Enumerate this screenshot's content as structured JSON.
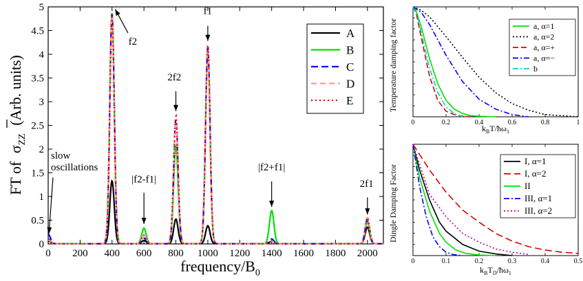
{
  "chart_data": [
    {
      "id": "main",
      "type": "line",
      "ylabel_prefix": "FT of",
      "ylabel_sigma": "σ",
      "ylabel_sub": "ZZ",
      "ylabel_suffix": "(Arb. units)",
      "xlabel_main": "frequency/B",
      "xlabel_sub": "0",
      "xlim": [
        0,
        2100
      ],
      "ylim": [
        0,
        5
      ],
      "xticks": [
        "0",
        "200",
        "400",
        "600",
        "800",
        "1000",
        "1200",
        "1400",
        "1600",
        "1800",
        "2000"
      ],
      "xtick_values": [
        0,
        200,
        400,
        600,
        800,
        1000,
        1200,
        1400,
        1600,
        1800,
        2000
      ],
      "yticks": [
        "0",
        "0.5",
        "1",
        "1.5",
        "2",
        "2.5",
        "3",
        "3.5",
        "4",
        "4.5",
        "5"
      ],
      "ytick_values": [
        0,
        0.5,
        1,
        1.5,
        2,
        2.5,
        3,
        3.5,
        4,
        4.5,
        5
      ],
      "series": [
        {
          "name": "A",
          "color": "#000000",
          "dash": "",
          "peaks": [
            [
              0,
              0.06
            ],
            [
              400,
              1.33
            ],
            [
              600,
              0.07
            ],
            [
              800,
              0.52
            ],
            [
              1000,
              0.38
            ],
            [
              1400,
              0.05
            ],
            [
              2000,
              0.35
            ]
          ]
        },
        {
          "name": "B",
          "color": "#00e000",
          "dash": "",
          "peaks": [
            [
              0,
              0.1
            ],
            [
              400,
              4.88
            ],
            [
              600,
              0.33
            ],
            [
              800,
              2.08
            ],
            [
              1000,
              4.12
            ],
            [
              1400,
              0.7
            ],
            [
              2000,
              0.46
            ]
          ]
        },
        {
          "name": "C",
          "color": "#0000ff",
          "dash": "10,5",
          "peaks": [
            [
              0,
              0.2
            ],
            [
              400,
              4.85
            ],
            [
              600,
              0.12
            ],
            [
              800,
              2.62
            ],
            [
              1000,
              4.15
            ],
            [
              1400,
              0.1
            ],
            [
              2000,
              0.52
            ]
          ]
        },
        {
          "name": "D",
          "color": "#ff9999",
          "dash": "8,5",
          "peaks": [
            [
              0,
              0.08
            ],
            [
              400,
              4.82
            ],
            [
              600,
              0.2
            ],
            [
              800,
              2.58
            ],
            [
              1000,
              4.1
            ],
            [
              1400,
              0.05
            ],
            [
              2000,
              0.55
            ]
          ]
        },
        {
          "name": "E",
          "color": "#ff0000",
          "dash": "2,4",
          "peaks": [
            [
              0,
              0.1
            ],
            [
              400,
              4.8
            ],
            [
              600,
              0.18
            ],
            [
              800,
              2.7
            ],
            [
              1000,
              4.2
            ],
            [
              1400,
              0.05
            ],
            [
              2000,
              0.55
            ]
          ]
        }
      ],
      "annotations": [
        {
          "text": "slow",
          "x": 30,
          "y": 1.8
        },
        {
          "text": "oscillations",
          "x": 30,
          "y": 1.55
        },
        {
          "text": "f2",
          "x": 530,
          "y": 4.2
        },
        {
          "text": "f1",
          "x": 1000,
          "y": 4.85
        },
        {
          "text": "2f2",
          "x": 790,
          "y": 3.45
        },
        {
          "text": "|f2-f1|",
          "x": 600,
          "y": 1.3
        },
        {
          "text": "|f2+f1|",
          "x": 1400,
          "y": 1.55
        },
        {
          "text": "2f1",
          "x": 1995,
          "y": 1.2
        }
      ]
    },
    {
      "id": "temp",
      "type": "line",
      "ylabel": "Temperature damping factor",
      "xlabel_k": "k",
      "xlabel_b": "B",
      "xlabel_t": "T/ħω",
      "xlabel_sub": "1",
      "xlim": [
        0,
        1
      ],
      "ylim": [
        0,
        1
      ],
      "xticks": [
        "0",
        "0.2",
        "0.4",
        "0.6",
        "0.8",
        "1"
      ],
      "xtick_values": [
        0,
        0.2,
        0.4,
        0.6,
        0.8,
        1
      ],
      "series": [
        {
          "name": "a, α=1",
          "color": "#00e000",
          "dash": "",
          "x": [
            0,
            0.02,
            0.05,
            0.1,
            0.15,
            0.2,
            0.25,
            0.3,
            0.35,
            0.4,
            0.5
          ],
          "y": [
            1,
            0.96,
            0.82,
            0.53,
            0.3,
            0.15,
            0.07,
            0.03,
            0.01,
            0.005,
            0
          ]
        },
        {
          "name": "a, α=2",
          "color": "#000000",
          "dash": "2,3",
          "x": [
            0,
            0.05,
            0.1,
            0.2,
            0.3,
            0.4,
            0.5,
            0.6,
            0.7,
            0.8,
            0.9,
            1
          ],
          "y": [
            1,
            0.97,
            0.91,
            0.73,
            0.54,
            0.36,
            0.22,
            0.12,
            0.06,
            0.02,
            0.01,
            0
          ]
        },
        {
          "name": "a, α=+",
          "color": "#dd0000",
          "dash": "8,4",
          "x": [
            0,
            0.02,
            0.05,
            0.1,
            0.15,
            0.2,
            0.25,
            0.3,
            0.35
          ],
          "y": [
            1,
            0.94,
            0.72,
            0.37,
            0.15,
            0.05,
            0.02,
            0.005,
            0
          ]
        },
        {
          "name": "a, α=−",
          "color": "#0000ff",
          "dash": "8,3,2,3",
          "x": [
            0,
            0.05,
            0.1,
            0.2,
            0.3,
            0.4,
            0.5,
            0.6,
            0.7
          ],
          "y": [
            1,
            0.95,
            0.84,
            0.56,
            0.32,
            0.16,
            0.07,
            0.02,
            0
          ]
        },
        {
          "name": "b",
          "color": "#00cccc",
          "dash": "8,3,2,3",
          "x": [
            0,
            0.03,
            0.06,
            0.1,
            0.15,
            0.2,
            0.25,
            0.3
          ],
          "y": [
            1,
            0.9,
            0.7,
            0.44,
            0.22,
            0.09,
            0.03,
            0
          ]
        }
      ]
    },
    {
      "id": "dingle",
      "type": "line",
      "ylabel": "Dingle Damping Factor",
      "xlabel_k": "k",
      "xlabel_b": "B",
      "xlabel_t": "T",
      "xlabel_d": "D",
      "xlabel_rest": "/ħω",
      "xlabel_sub": "1",
      "xlim": [
        0,
        0.5
      ],
      "ylim": [
        0,
        1
      ],
      "xticks": [
        "0",
        "0.1",
        "0.2",
        "0.3",
        "0.4",
        "0.5"
      ],
      "xtick_values": [
        0,
        0.1,
        0.2,
        0.3,
        0.4,
        0.5
      ],
      "series": [
        {
          "name": "I, α=1",
          "color": "#000000",
          "dash": "",
          "x": [
            0,
            0.02,
            0.05,
            0.08,
            0.1,
            0.15,
            0.2,
            0.25,
            0.3
          ],
          "y": [
            1,
            0.77,
            0.5,
            0.3,
            0.22,
            0.1,
            0.04,
            0.015,
            0
          ]
        },
        {
          "name": "I, α=2",
          "color": "#dd0000",
          "dash": "10,5",
          "x": [
            0,
            0.05,
            0.1,
            0.15,
            0.2,
            0.25,
            0.3,
            0.35,
            0.4,
            0.45,
            0.5
          ],
          "y": [
            1,
            0.77,
            0.57,
            0.41,
            0.3,
            0.2,
            0.13,
            0.08,
            0.05,
            0.03,
            0.02
          ]
        },
        {
          "name": "II",
          "color": "#00e000",
          "dash": "",
          "x": [
            0,
            0.02,
            0.05,
            0.08,
            0.1,
            0.13,
            0.16,
            0.2,
            0.25
          ],
          "y": [
            1,
            0.7,
            0.4,
            0.2,
            0.12,
            0.05,
            0.02,
            0.005,
            0
          ]
        },
        {
          "name": "III, α=1",
          "color": "#0000ff",
          "dash": "8,3,2,3",
          "x": [
            0,
            0.02,
            0.04,
            0.06,
            0.08,
            0.1,
            0.12,
            0.15
          ],
          "y": [
            1,
            0.62,
            0.35,
            0.17,
            0.08,
            0.03,
            0.01,
            0
          ]
        },
        {
          "name": "III, α=2",
          "color": "#aa00aa",
          "dash": "2,3",
          "x": [
            0,
            0.05,
            0.1,
            0.15,
            0.2,
            0.25,
            0.3,
            0.35
          ],
          "y": [
            1,
            0.55,
            0.35,
            0.2,
            0.12,
            0.06,
            0.03,
            0.01
          ]
        }
      ]
    }
  ]
}
